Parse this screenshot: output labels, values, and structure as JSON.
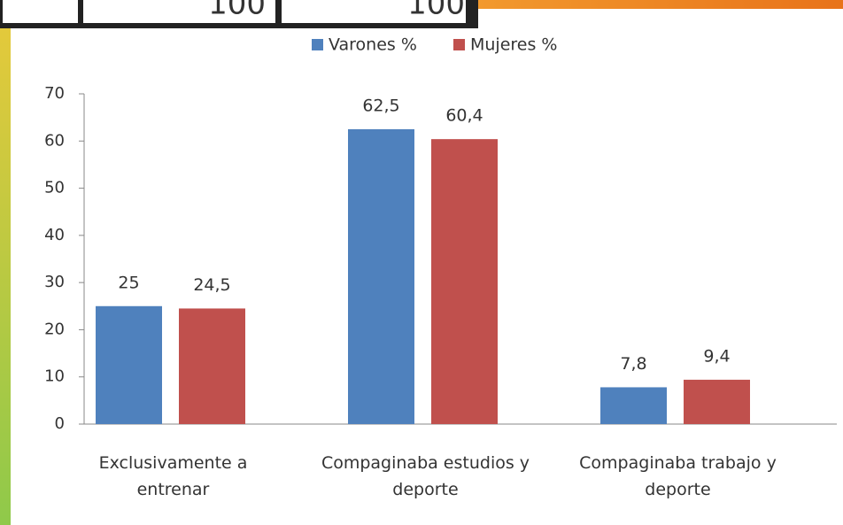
{
  "top_table": {
    "cells": [
      "100",
      "100"
    ]
  },
  "chart_data": {
    "type": "bar",
    "categories": [
      "Exclusivamente a entrenar",
      "Compaginaba estudios y deporte",
      "Compaginaba trabajo y deporte"
    ],
    "series": [
      {
        "name": "Varones %",
        "color": "#4f81bd",
        "values": [
          25,
          62.5,
          7.8
        ],
        "value_labels": [
          "25",
          "62,5",
          "7,8"
        ]
      },
      {
        "name": "Mujeres %",
        "color": "#c0504d",
        "values": [
          24.5,
          60.4,
          9.4
        ],
        "value_labels": [
          "24,5",
          "60,4",
          "9,4"
        ]
      }
    ],
    "ylim": [
      0,
      70
    ],
    "yticks": [
      0,
      10,
      20,
      30,
      40,
      50,
      60,
      70
    ],
    "grid": false,
    "legend": "top"
  }
}
